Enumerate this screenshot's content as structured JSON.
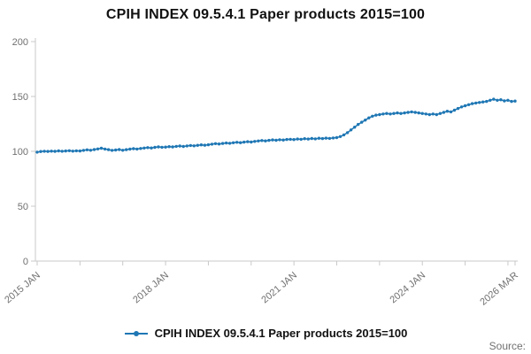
{
  "source_label": "Source:",
  "colors": {
    "accent": "#1f77b4",
    "axis": "#c9c9c9",
    "tick_text": "#707070"
  },
  "chart_data": {
    "type": "line",
    "title": "CPIH INDEX 09.5.4.1 Paper products 2015=100",
    "legend": "CPIH INDEX 09.5.4.1 Paper products 2015=100",
    "x_start": "2015 JAN",
    "x_end": "2026 MAR",
    "x_frequency": "monthly",
    "ylim": [
      0,
      200
    ],
    "yticks": [
      0,
      50,
      100,
      150,
      200
    ],
    "grid": false,
    "legend_position": "bottom-center",
    "xticks": [
      {
        "index": 0,
        "label": "2015 JAN"
      },
      {
        "index": 36,
        "label": "2018 JAN"
      },
      {
        "index": 72,
        "label": "2021 JAN"
      },
      {
        "index": 108,
        "label": "2024 JAN"
      },
      {
        "index": 134,
        "label": "2026 MAR"
      }
    ],
    "minor_xtick_every_months": 12,
    "values": [
      99.3,
      99.8,
      100.1,
      99.9,
      100.2,
      100.0,
      100.4,
      100.1,
      100.3,
      100.6,
      100.2,
      100.5,
      100.3,
      100.9,
      101.4,
      101.0,
      101.6,
      102.2,
      102.8,
      102.1,
      101.5,
      100.9,
      101.2,
      101.6,
      101.0,
      101.5,
      102.0,
      102.4,
      102.1,
      102.6,
      103.0,
      103.4,
      103.1,
      103.6,
      104.0,
      103.7,
      103.9,
      104.3,
      104.0,
      104.5,
      104.8,
      104.4,
      104.9,
      105.3,
      105.0,
      105.5,
      105.9,
      105.6,
      106.0,
      106.5,
      107.0,
      106.7,
      107.2,
      107.6,
      107.3,
      107.8,
      108.2,
      107.9,
      108.4,
      108.8,
      108.5,
      109.0,
      109.4,
      109.8,
      109.5,
      110.0,
      110.4,
      110.1,
      110.6,
      110.3,
      110.8,
      111.0,
      110.7,
      111.2,
      111.0,
      111.5,
      111.2,
      111.7,
      111.4,
      111.9,
      111.6,
      112.0,
      111.8,
      112.2,
      112.5,
      113.5,
      115.0,
      117.0,
      119.5,
      122.0,
      124.5,
      126.5,
      128.5,
      130.5,
      132.0,
      133.0,
      133.5,
      134.0,
      134.5,
      134.0,
      134.5,
      135.0,
      134.5,
      135.0,
      135.5,
      136.0,
      135.5,
      135.0,
      134.5,
      134.0,
      133.5,
      134.0,
      133.5,
      134.5,
      135.5,
      136.5,
      136.0,
      137.5,
      139.0,
      140.5,
      141.5,
      142.5,
      143.5,
      144.0,
      144.5,
      145.0,
      145.5,
      146.5,
      147.5,
      146.5,
      147.0,
      146.0,
      146.5,
      145.5,
      145.8
    ]
  }
}
